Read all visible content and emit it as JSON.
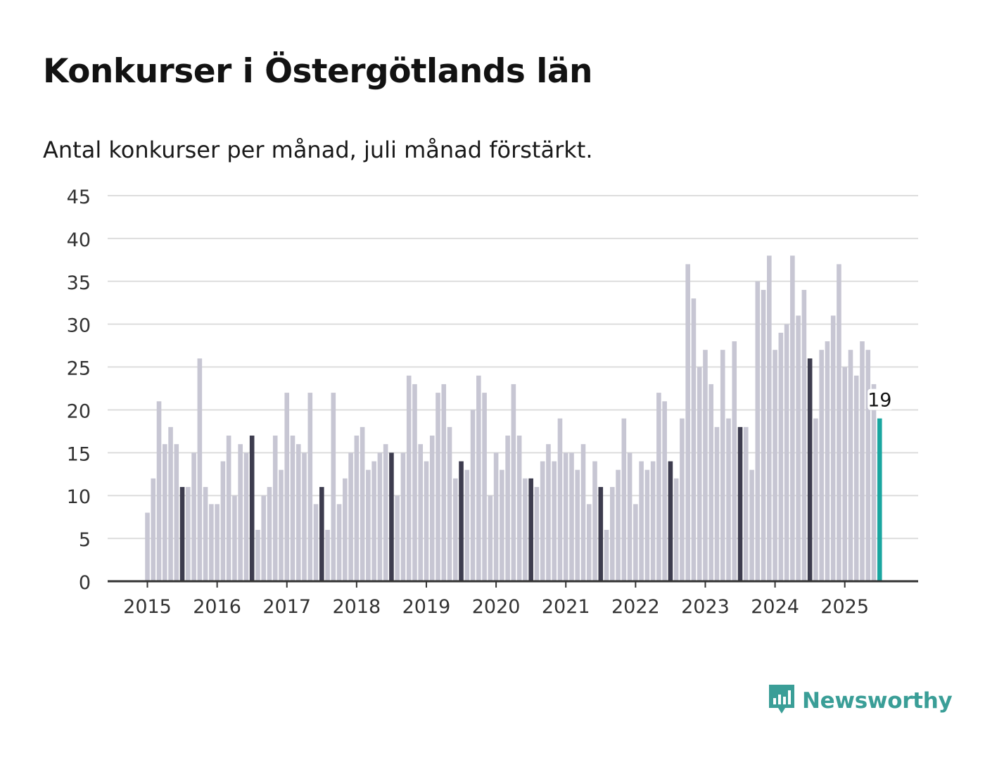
{
  "title": "Konkurser i Östergötlands län",
  "subtitle": "Antal konkurser per månad, juli månad förstärkt.",
  "logo": {
    "text": "Newsworthy",
    "icon": "newsworthy-logo-icon"
  },
  "colors": {
    "regular": "#c7c6d3",
    "highlight": "#3d3c4e",
    "latest": "#1aa6a0",
    "grid": "#dddddd",
    "axis": "#333333"
  },
  "chart_data": {
    "type": "bar",
    "ylim": [
      0,
      45
    ],
    "y_ticks": [
      "0",
      "5",
      "10",
      "15",
      "20",
      "25",
      "30",
      "35",
      "40",
      "45"
    ],
    "x_ticks": [
      "2015",
      "2016",
      "2017",
      "2018",
      "2019",
      "2020",
      "2021",
      "2022",
      "2023",
      "2024",
      "2025"
    ],
    "highlight": "juli",
    "grid": true,
    "annotation": {
      "label": "19",
      "point": "2025-07"
    },
    "series": [
      {
        "year": "2015",
        "values": [
          8,
          12,
          21,
          16,
          18,
          16,
          11,
          11,
          15,
          26,
          11,
          9
        ]
      },
      {
        "year": "2016",
        "values": [
          9,
          14,
          17,
          10,
          16,
          15,
          17,
          6,
          10,
          11,
          17,
          13
        ]
      },
      {
        "year": "2017",
        "values": [
          22,
          17,
          16,
          15,
          22,
          9,
          11,
          6,
          22,
          9,
          12,
          15
        ]
      },
      {
        "year": "2018",
        "values": [
          17,
          18,
          13,
          14,
          15,
          16,
          15,
          10,
          15,
          24,
          23,
          16
        ]
      },
      {
        "year": "2019",
        "values": [
          14,
          17,
          22,
          23,
          18,
          12,
          14,
          13,
          20,
          24,
          22,
          10
        ]
      },
      {
        "year": "2020",
        "values": [
          15,
          13,
          17,
          23,
          17,
          12,
          12,
          11,
          14,
          16,
          14,
          19
        ]
      },
      {
        "year": "2021",
        "values": [
          15,
          15,
          13,
          16,
          9,
          14,
          11,
          6,
          11,
          13,
          19,
          15
        ]
      },
      {
        "year": "2022",
        "values": [
          9,
          14,
          13,
          14,
          22,
          21,
          14,
          12,
          19,
          37,
          33,
          25
        ]
      },
      {
        "year": "2023",
        "values": [
          27,
          23,
          18,
          27,
          19,
          28,
          18,
          18,
          13,
          35,
          34,
          38
        ]
      },
      {
        "year": "2024",
        "values": [
          27,
          29,
          30,
          38,
          31,
          34,
          26,
          19,
          27,
          28,
          31,
          37
        ]
      },
      {
        "year": "2025",
        "values": [
          25,
          27,
          24,
          28,
          27,
          23,
          19
        ]
      }
    ]
  }
}
